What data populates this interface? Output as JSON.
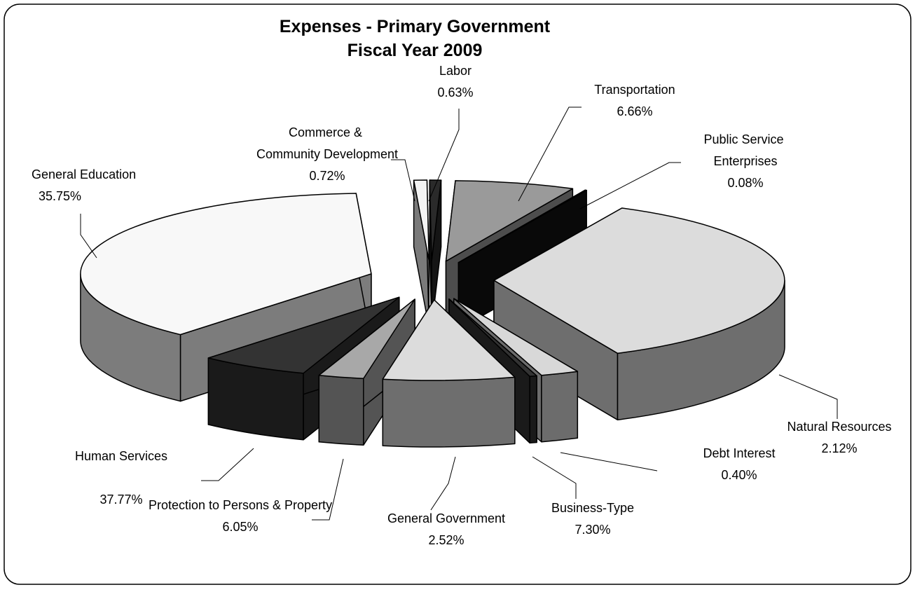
{
  "chart_data": {
    "type": "pie",
    "title": "Expenses - Primary Government",
    "subtitle": "Fiscal Year 2009",
    "categories": [
      "Commerce & Community Development",
      "Labor",
      "Transportation",
      "Public Service Enterprises",
      "General Education",
      "Natural Resources",
      "Debt Interest",
      "Business-Type",
      "General Government",
      "Protection to Persons & Property",
      "Human Services"
    ],
    "values": [
      0.72,
      0.63,
      6.66,
      0.08,
      35.75,
      2.12,
      0.4,
      7.3,
      2.52,
      6.05,
      37.77
    ],
    "value_labels": [
      "0.72%",
      "0.63%",
      "6.66%",
      "0.08%",
      "35.75%",
      "2.12%",
      "0.40%",
      "7.30%",
      "2.52%",
      "6.05%",
      "37.77%"
    ],
    "colors": [
      "#f4f4f4",
      "#2a2a2a",
      "#9a9a9a",
      "#111111",
      "#dcdcdc",
      "#d8d8d8",
      "#333333",
      "#dcdcdc",
      "#a8a8a8",
      "#333333",
      "#f8f8f8"
    ]
  }
}
